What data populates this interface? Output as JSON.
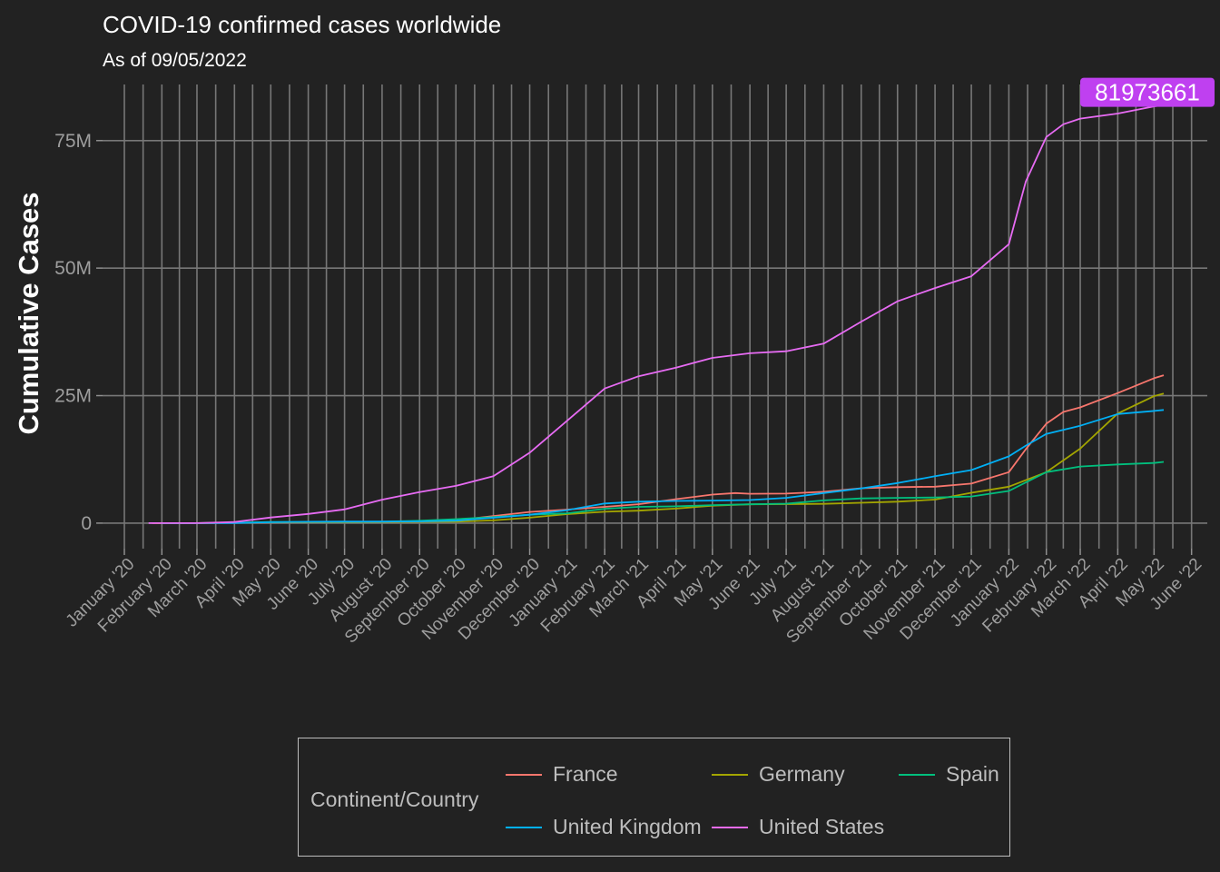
{
  "title": "COVID-19 confirmed cases worldwide",
  "subtitle": "As of 09/05/2022",
  "chart_data": {
    "type": "line",
    "ylabel": "Cumulative Cases",
    "xlabel": "",
    "y_ticks": [
      0,
      25000000,
      50000000,
      75000000
    ],
    "y_tick_labels": [
      "0",
      "25M",
      "50M",
      "75M"
    ],
    "ylim": [
      -5000000,
      86000000
    ],
    "xlim": [
      "2019-12-14",
      "2022-06-14"
    ],
    "x_ticks": [
      "2020-01-01",
      "2020-02-01",
      "2020-03-01",
      "2020-04-01",
      "2020-05-01",
      "2020-06-01",
      "2020-07-01",
      "2020-08-01",
      "2020-09-01",
      "2020-10-01",
      "2020-11-01",
      "2020-12-01",
      "2021-01-01",
      "2021-02-01",
      "2021-03-01",
      "2021-04-01",
      "2021-05-01",
      "2021-06-01",
      "2021-07-01",
      "2021-08-01",
      "2021-09-01",
      "2021-10-01",
      "2021-11-01",
      "2021-12-01",
      "2022-01-01",
      "2022-02-01",
      "2022-03-01",
      "2022-04-01",
      "2022-05-01",
      "2022-06-01"
    ],
    "x_tick_labels": [
      "January '20",
      "February '20",
      "March '20",
      "April '20",
      "May '20",
      "June '20",
      "July '20",
      "August '20",
      "September '20",
      "October '20",
      "November '20",
      "December '20",
      "January '21",
      "February '21",
      "March '21",
      "April '21",
      "May '21",
      "June '21",
      "July '21",
      "August '21",
      "September '21",
      "October '21",
      "November '21",
      "December '21",
      "January '22",
      "February '22",
      "March '22",
      "April '22",
      "May '22",
      "June '22"
    ],
    "grid": true,
    "legend": {
      "title": "Continent/Country",
      "position": "bottom"
    },
    "annotation": {
      "label": "81973661",
      "date": "2022-05-09",
      "value": 81973661,
      "color": "#bf40f0"
    },
    "series": [
      {
        "name": "France",
        "color": "#f8766d",
        "points": [
          [
            "2020-01-24",
            0
          ],
          [
            "2020-03-01",
            130
          ],
          [
            "2020-04-01",
            56000
          ],
          [
            "2020-05-01",
            130000
          ],
          [
            "2020-06-01",
            150000
          ],
          [
            "2020-07-01",
            165000
          ],
          [
            "2020-08-01",
            190000
          ],
          [
            "2020-09-01",
            280000
          ],
          [
            "2020-10-01",
            560000
          ],
          [
            "2020-11-01",
            1400000
          ],
          [
            "2020-12-01",
            2200000
          ],
          [
            "2021-01-01",
            2650000
          ],
          [
            "2021-02-01",
            3200000
          ],
          [
            "2021-03-01",
            3700000
          ],
          [
            "2021-04-01",
            4700000
          ],
          [
            "2021-05-01",
            5600000
          ],
          [
            "2021-05-20",
            5900000
          ],
          [
            "2021-06-01",
            5750000
          ],
          [
            "2021-07-01",
            5800000
          ],
          [
            "2021-08-01",
            6150000
          ],
          [
            "2021-09-01",
            6850000
          ],
          [
            "2021-10-01",
            7050000
          ],
          [
            "2021-11-01",
            7150000
          ],
          [
            "2021-12-01",
            7750000
          ],
          [
            "2022-01-01",
            10000000
          ],
          [
            "2022-01-15",
            14500000
          ],
          [
            "2022-02-01",
            19500000
          ],
          [
            "2022-02-15",
            21800000
          ],
          [
            "2022-03-01",
            22700000
          ],
          [
            "2022-04-01",
            25500000
          ],
          [
            "2022-05-01",
            28400000
          ],
          [
            "2022-05-09",
            29000000
          ]
        ]
      },
      {
        "name": "Germany",
        "color": "#a3a500",
        "points": [
          [
            "2020-01-27",
            0
          ],
          [
            "2020-03-01",
            130
          ],
          [
            "2020-04-01",
            77000
          ],
          [
            "2020-05-01",
            164000
          ],
          [
            "2020-06-01",
            183000
          ],
          [
            "2020-07-01",
            195000
          ],
          [
            "2020-08-01",
            210000
          ],
          [
            "2020-09-01",
            245000
          ],
          [
            "2020-10-01",
            295000
          ],
          [
            "2020-11-01",
            530000
          ],
          [
            "2020-12-01",
            1070000
          ],
          [
            "2021-01-01",
            1760000
          ],
          [
            "2021-02-01",
            2230000
          ],
          [
            "2021-03-01",
            2450000
          ],
          [
            "2021-04-01",
            2850000
          ],
          [
            "2021-05-01",
            3420000
          ],
          [
            "2021-06-01",
            3690000
          ],
          [
            "2021-07-01",
            3730000
          ],
          [
            "2021-08-01",
            3780000
          ],
          [
            "2021-09-01",
            3990000
          ],
          [
            "2021-10-01",
            4200000
          ],
          [
            "2021-11-01",
            4620000
          ],
          [
            "2021-12-01",
            5950000
          ],
          [
            "2022-01-01",
            7150000
          ],
          [
            "2022-02-01",
            10000000
          ],
          [
            "2022-03-01",
            14600000
          ],
          [
            "2022-04-01",
            21500000
          ],
          [
            "2022-05-01",
            24900000
          ],
          [
            "2022-05-09",
            25400000
          ]
        ]
      },
      {
        "name": "Spain",
        "color": "#00bf7d",
        "points": [
          [
            "2020-02-01",
            0
          ],
          [
            "2020-03-01",
            80
          ],
          [
            "2020-04-01",
            100000
          ],
          [
            "2020-05-01",
            215000
          ],
          [
            "2020-06-01",
            239000
          ],
          [
            "2020-07-01",
            250000
          ],
          [
            "2020-08-01",
            290000
          ],
          [
            "2020-09-01",
            470000
          ],
          [
            "2020-10-01",
            780000
          ],
          [
            "2020-11-01",
            1180000
          ],
          [
            "2020-12-01",
            1650000
          ],
          [
            "2021-01-01",
            1930000
          ],
          [
            "2021-02-01",
            2820000
          ],
          [
            "2021-03-01",
            3190000
          ],
          [
            "2021-04-01",
            3290000
          ],
          [
            "2021-05-01",
            3530000
          ],
          [
            "2021-06-01",
            3690000
          ],
          [
            "2021-07-01",
            3810000
          ],
          [
            "2021-08-01",
            4450000
          ],
          [
            "2021-09-01",
            4850000
          ],
          [
            "2021-10-01",
            4950000
          ],
          [
            "2021-11-01",
            5020000
          ],
          [
            "2021-12-01",
            5230000
          ],
          [
            "2022-01-01",
            6300000
          ],
          [
            "2022-02-01",
            10000000
          ],
          [
            "2022-03-01",
            11100000
          ],
          [
            "2022-04-01",
            11500000
          ],
          [
            "2022-05-01",
            11800000
          ],
          [
            "2022-05-09",
            12000000
          ]
        ]
      },
      {
        "name": "United Kingdom",
        "color": "#00b0f6",
        "points": [
          [
            "2020-01-31",
            0
          ],
          [
            "2020-03-01",
            40
          ],
          [
            "2020-04-01",
            30000
          ],
          [
            "2020-05-01",
            180000
          ],
          [
            "2020-06-01",
            275000
          ],
          [
            "2020-07-01",
            310000
          ],
          [
            "2020-08-01",
            305000
          ],
          [
            "2020-09-01",
            340000
          ],
          [
            "2020-10-01",
            480000
          ],
          [
            "2020-11-01",
            1050000
          ],
          [
            "2020-12-01",
            1650000
          ],
          [
            "2021-01-01",
            2550000
          ],
          [
            "2021-02-01",
            3850000
          ],
          [
            "2021-03-01",
            4200000
          ],
          [
            "2021-04-01",
            4350000
          ],
          [
            "2021-05-01",
            4420000
          ],
          [
            "2021-06-01",
            4520000
          ],
          [
            "2021-07-01",
            4950000
          ],
          [
            "2021-08-01",
            5900000
          ],
          [
            "2021-09-01",
            6800000
          ],
          [
            "2021-10-01",
            7850000
          ],
          [
            "2021-11-01",
            9200000
          ],
          [
            "2021-12-01",
            10400000
          ],
          [
            "2022-01-01",
            13100000
          ],
          [
            "2022-01-15",
            15200000
          ],
          [
            "2022-02-01",
            17500000
          ],
          [
            "2022-03-01",
            19100000
          ],
          [
            "2022-04-01",
            21400000
          ],
          [
            "2022-05-01",
            22000000
          ],
          [
            "2022-05-09",
            22200000
          ]
        ]
      },
      {
        "name": "United States",
        "color": "#e76bf3",
        "points": [
          [
            "2020-01-21",
            0
          ],
          [
            "2020-03-01",
            75
          ],
          [
            "2020-04-01",
            210000
          ],
          [
            "2020-05-01",
            1100000
          ],
          [
            "2020-06-01",
            1800000
          ],
          [
            "2020-07-01",
            2700000
          ],
          [
            "2020-08-01",
            4600000
          ],
          [
            "2020-09-01",
            6100000
          ],
          [
            "2020-10-01",
            7300000
          ],
          [
            "2020-11-01",
            9200000
          ],
          [
            "2020-12-01",
            13800000
          ],
          [
            "2021-01-01",
            20100000
          ],
          [
            "2021-02-01",
            26400000
          ],
          [
            "2021-03-01",
            28800000
          ],
          [
            "2021-04-01",
            30500000
          ],
          [
            "2021-05-01",
            32400000
          ],
          [
            "2021-06-01",
            33300000
          ],
          [
            "2021-07-01",
            33700000
          ],
          [
            "2021-08-01",
            35200000
          ],
          [
            "2021-09-01",
            39500000
          ],
          [
            "2021-10-01",
            43500000
          ],
          [
            "2021-11-01",
            46100000
          ],
          [
            "2021-12-01",
            48400000
          ],
          [
            "2022-01-01",
            54700000
          ],
          [
            "2022-01-15",
            67000000
          ],
          [
            "2022-02-01",
            75700000
          ],
          [
            "2022-02-15",
            78200000
          ],
          [
            "2022-03-01",
            79300000
          ],
          [
            "2022-04-01",
            80300000
          ],
          [
            "2022-05-01",
            81700000
          ],
          [
            "2022-05-09",
            81973661
          ]
        ]
      }
    ]
  }
}
